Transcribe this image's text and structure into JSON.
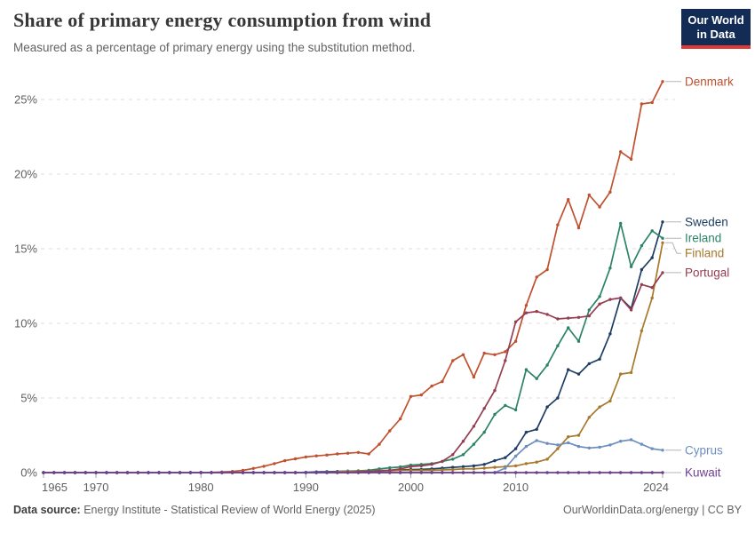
{
  "header": {
    "title": "Share of primary energy consumption from wind",
    "subtitle": "Measured as a percentage of primary energy using the substitution method.",
    "logo": {
      "line1": "Our World",
      "line2": "in Data",
      "bg_color": "#132C55",
      "bar_color": "#DC3A35"
    }
  },
  "footer": {
    "source_label": "Data source:",
    "source_text": " Energy Institute - Statistical Review of World Energy (2025)",
    "credit": "OurWorldinData.org/energy | CC BY"
  },
  "chart_data": {
    "type": "line",
    "title": "Share of primary energy consumption from wind",
    "ylabel": "",
    "xlabel": "",
    "grid": "dashed horizontal gridlines",
    "legend_position": "end-of-line labels, right side",
    "ylim": [
      0,
      26.5
    ],
    "xlim": [
      1965,
      2024
    ],
    "yticks": [
      0,
      5,
      10,
      15,
      20,
      25
    ],
    "ytick_suffix": "%",
    "xticks": [
      1965,
      1970,
      1980,
      1990,
      2000,
      2010,
      2024
    ],
    "years": [
      1965,
      1966,
      1967,
      1968,
      1969,
      1970,
      1971,
      1972,
      1973,
      1974,
      1975,
      1976,
      1977,
      1978,
      1979,
      1980,
      1981,
      1982,
      1983,
      1984,
      1985,
      1986,
      1987,
      1988,
      1989,
      1990,
      1991,
      1992,
      1993,
      1994,
      1995,
      1996,
      1997,
      1998,
      1999,
      2000,
      2001,
      2002,
      2003,
      2004,
      2005,
      2006,
      2007,
      2008,
      2009,
      2010,
      2011,
      2012,
      2013,
      2014,
      2015,
      2016,
      2017,
      2018,
      2019,
      2020,
      2021,
      2022,
      2023,
      2024
    ],
    "series": [
      {
        "name": "Denmark",
        "color": "#C0512F",
        "values": [
          0,
          0,
          0,
          0,
          0,
          0,
          0,
          0,
          0,
          0,
          0,
          0,
          0,
          0,
          0,
          0.01,
          0.02,
          0.04,
          0.08,
          0.15,
          0.28,
          0.42,
          0.6,
          0.8,
          0.92,
          1.05,
          1.12,
          1.18,
          1.25,
          1.3,
          1.35,
          1.25,
          1.9,
          2.8,
          3.6,
          5.1,
          5.2,
          5.8,
          6.1,
          7.5,
          7.9,
          6.4,
          8.0,
          7.9,
          8.1,
          8.8,
          11.2,
          13.1,
          13.6,
          16.6,
          18.3,
          16.4,
          18.6,
          17.8,
          18.8,
          21.5,
          21.0,
          24.7,
          24.8,
          26.2
        ]
      },
      {
        "name": "Sweden",
        "color": "#1D3D63",
        "values": [
          0,
          0,
          0,
          0,
          0,
          0,
          0,
          0,
          0,
          0,
          0,
          0,
          0,
          0,
          0,
          0,
          0,
          0,
          0,
          0,
          0,
          0,
          0,
          0,
          0,
          0.02,
          0.05,
          0.06,
          0.08,
          0.1,
          0.1,
          0.12,
          0.14,
          0.15,
          0.18,
          0.2,
          0.22,
          0.25,
          0.3,
          0.35,
          0.4,
          0.45,
          0.55,
          0.8,
          1.0,
          1.6,
          2.7,
          2.9,
          4.4,
          5.0,
          6.9,
          6.6,
          7.3,
          7.6,
          9.3,
          11.7,
          11.0,
          13.6,
          14.4,
          16.8
        ]
      },
      {
        "name": "Ireland",
        "color": "#2C8465",
        "values": [
          0,
          0,
          0,
          0,
          0,
          0,
          0,
          0,
          0,
          0,
          0,
          0,
          0,
          0,
          0,
          0,
          0,
          0,
          0,
          0,
          0,
          0,
          0,
          0,
          0,
          0,
          0,
          0.02,
          0.05,
          0.1,
          0.12,
          0.15,
          0.25,
          0.32,
          0.38,
          0.5,
          0.55,
          0.6,
          0.75,
          0.9,
          1.2,
          1.9,
          2.7,
          3.9,
          4.5,
          4.2,
          6.9,
          6.3,
          7.2,
          8.5,
          9.7,
          8.8,
          10.9,
          11.8,
          13.7,
          16.7,
          13.8,
          15.2,
          16.2,
          15.7
        ]
      },
      {
        "name": "Finland",
        "color": "#A8792C",
        "values": [
          0,
          0,
          0,
          0,
          0,
          0,
          0,
          0,
          0,
          0,
          0,
          0,
          0,
          0,
          0,
          0,
          0,
          0,
          0,
          0,
          0,
          0,
          0,
          0,
          0,
          0,
          0,
          0.02,
          0.05,
          0.08,
          0.1,
          0.1,
          0.12,
          0.12,
          0.15,
          0.15,
          0.15,
          0.15,
          0.18,
          0.2,
          0.25,
          0.25,
          0.3,
          0.35,
          0.4,
          0.45,
          0.6,
          0.7,
          0.9,
          1.6,
          2.4,
          2.5,
          3.7,
          4.4,
          4.8,
          6.6,
          6.7,
          9.5,
          11.7,
          15.4
        ]
      },
      {
        "name": "Portugal",
        "color": "#953D51",
        "values": [
          0,
          0,
          0,
          0,
          0,
          0,
          0,
          0,
          0,
          0,
          0,
          0,
          0,
          0,
          0,
          0,
          0,
          0,
          0,
          0,
          0,
          0,
          0,
          0,
          0,
          0,
          0,
          0,
          0,
          0.02,
          0.05,
          0.08,
          0.1,
          0.15,
          0.25,
          0.4,
          0.45,
          0.55,
          0.75,
          1.2,
          2.1,
          3.1,
          4.3,
          5.5,
          7.5,
          10.1,
          10.7,
          10.8,
          10.6,
          10.3,
          10.35,
          10.4,
          10.5,
          11.3,
          11.6,
          11.7,
          10.9,
          12.6,
          12.4,
          13.4
        ]
      },
      {
        "name": "Cyprus",
        "color": "#6C8EBF",
        "values": [
          0,
          0,
          0,
          0,
          0,
          0,
          0,
          0,
          0,
          0,
          0,
          0,
          0,
          0,
          0,
          0,
          0,
          0,
          0,
          0,
          0,
          0,
          0,
          0,
          0,
          0,
          0,
          0,
          0,
          0,
          0,
          0,
          0,
          0,
          0,
          0,
          0,
          0,
          0,
          0,
          0,
          0,
          0,
          0,
          0.3,
          1.1,
          1.75,
          2.15,
          1.95,
          1.85,
          2.0,
          1.75,
          1.65,
          1.7,
          1.85,
          2.1,
          2.2,
          1.9,
          1.6,
          1.5
        ]
      },
      {
        "name": "Kuwait",
        "color": "#6D3E91",
        "values": [
          0,
          0,
          0,
          0,
          0,
          0,
          0,
          0,
          0,
          0,
          0,
          0,
          0,
          0,
          0,
          0,
          0,
          0,
          0,
          0,
          0,
          0,
          0,
          0,
          0,
          0,
          0,
          0,
          0,
          0,
          0,
          0,
          0,
          0,
          0,
          0,
          0,
          0,
          0,
          0,
          0,
          0,
          0,
          0,
          0,
          0,
          0,
          0,
          0,
          0,
          0,
          0,
          0,
          0,
          0,
          0,
          0,
          0,
          0,
          0
        ]
      }
    ]
  }
}
